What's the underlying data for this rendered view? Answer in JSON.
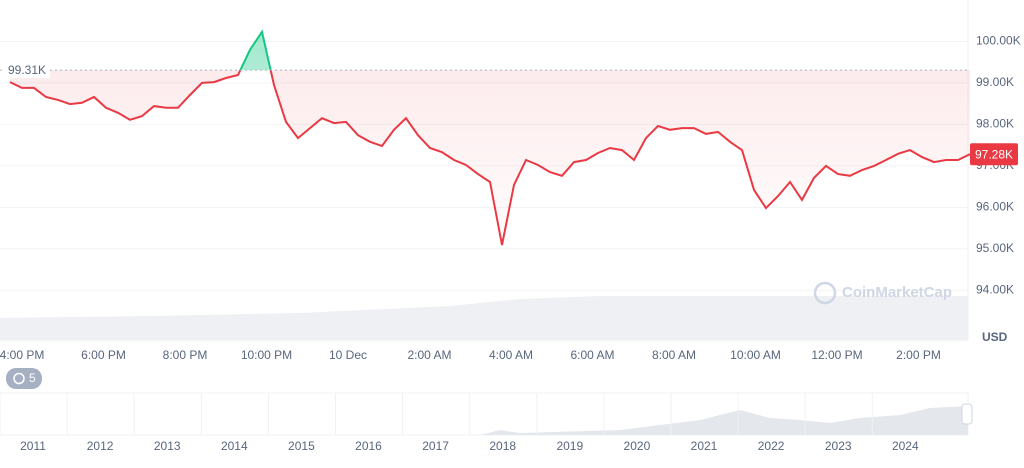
{
  "chart_data": {
    "type": "line",
    "values": [
      99020,
      98880,
      98880,
      98660,
      98590,
      98490,
      98520,
      98660,
      98400,
      98280,
      98110,
      98200,
      98440,
      98400,
      98400,
      98710,
      99000,
      99020,
      99120,
      99190,
      99800,
      100230,
      98950,
      98060,
      97670,
      97910,
      98150,
      98030,
      98060,
      97740,
      97580,
      97480,
      97870,
      98150,
      97740,
      97430,
      97330,
      97140,
      97020,
      96800,
      96610,
      95090,
      96540,
      97140,
      97020,
      96850,
      96760,
      97090,
      97140,
      97310,
      97430,
      97380,
      97140,
      97670,
      97960,
      97870,
      97910,
      97910,
      97770,
      97820,
      97580,
      97380,
      96420,
      95980,
      96270,
      96610,
      96180,
      96710,
      97000,
      96800,
      96760,
      96900,
      97000,
      97140,
      97290,
      97380,
      97210,
      97090,
      97140,
      97140,
      97280
    ],
    "value_labels": {
      "80": "97.28K"
    },
    "color_up": "#16c784",
    "color_down": "#ea3943",
    "baseline": 99310,
    "baseline_label": "99.31K",
    "ylim": [
      92800,
      101000
    ],
    "yticks": [
      {
        "value": 94000,
        "label": "94.00K"
      },
      {
        "value": 95000,
        "label": "95.00K"
      },
      {
        "value": 96000,
        "label": "96.00K"
      },
      {
        "value": 97000,
        "label": "97.00K"
      },
      {
        "value": 98000,
        "label": "98.00K"
      },
      {
        "value": 99000,
        "label": "99.00K"
      },
      {
        "value": 100000,
        "label": "100.00K"
      }
    ],
    "grid": true,
    "time_labels": [
      "4:00 PM",
      "6:00 PM",
      "8:00 PM",
      "10:00 PM",
      "10 Dec",
      "2:00 AM",
      "4:00 AM",
      "6:00 AM",
      "8:00 AM",
      "10:00 AM",
      "12:00 PM",
      "2:00 PM"
    ],
    "currency": "USD",
    "watermark": "CoinMarketCap",
    "history_badge": "5",
    "navigator_years": [
      "2011",
      "2012",
      "2013",
      "2014",
      "2015",
      "2016",
      "2017",
      "2018",
      "2019",
      "2020",
      "2021",
      "2022",
      "2023",
      "2024"
    ]
  }
}
